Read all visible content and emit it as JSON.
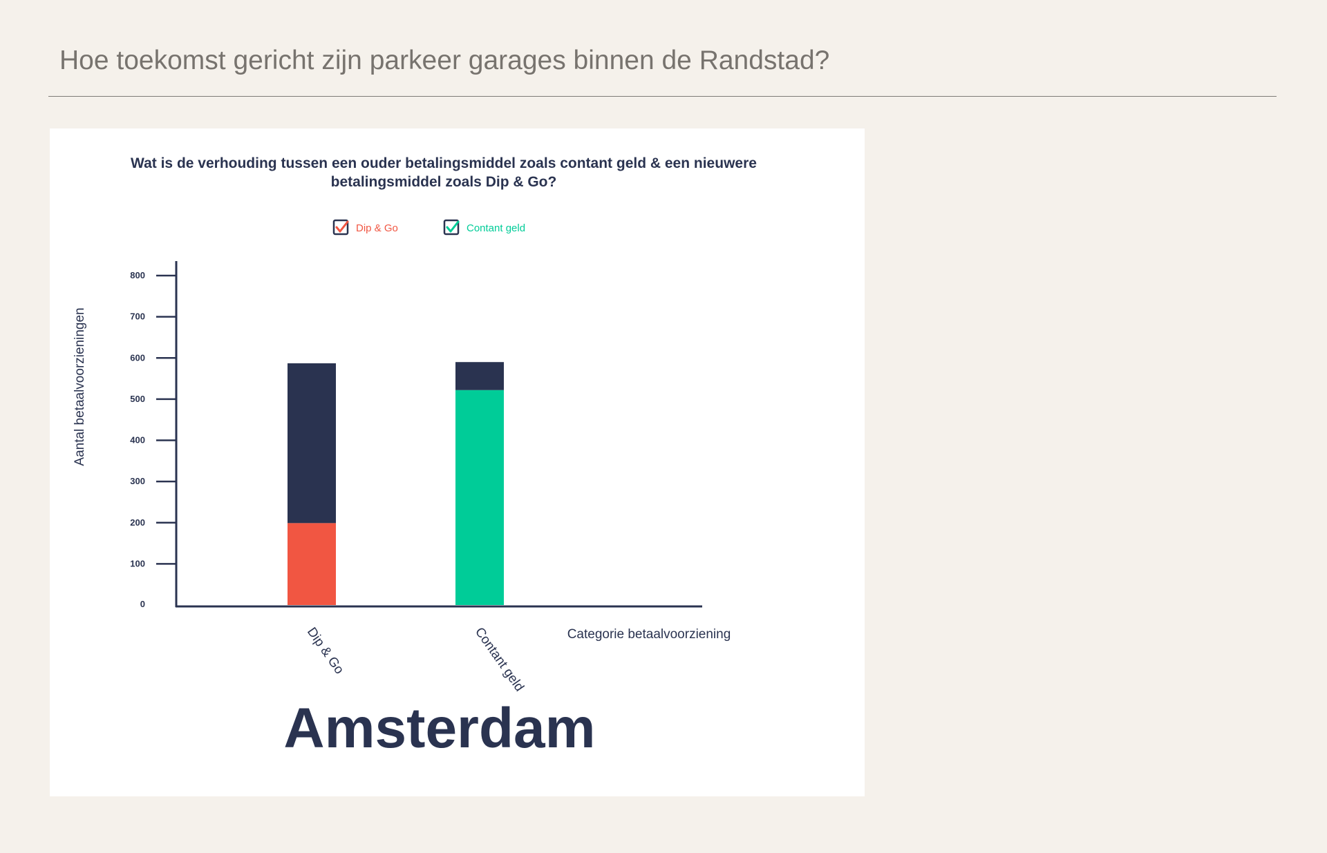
{
  "page": {
    "title": "Hoe toekomst gericht zijn parkeer garages binnen de Randstad?"
  },
  "colors": {
    "background": "#f5f1eb",
    "card": "#ffffff",
    "navy": "#2a3350",
    "dip_go": "#f15642",
    "contant": "#00cc98"
  },
  "chart_data": {
    "type": "bar",
    "stacked": true,
    "title_lines": [
      "Wat is de verhouding tussen een ouder betalingsmiddel zoals contant geld & een nieuwere",
      "betalingsmiddel zoals Dip & Go?"
    ],
    "categories": [
      "Dip & Go",
      "Contant geld"
    ],
    "series": [
      {
        "name": "Dip & Go",
        "color": "#f15642",
        "values": [
          199,
          0
        ]
      },
      {
        "name": "Contant geld",
        "color": "#00cc98",
        "values": [
          0,
          522
        ]
      },
      {
        "color": "#2a3350",
        "values": [
          388,
          68
        ]
      }
    ],
    "legend": [
      {
        "label": "Dip & Go",
        "color": "#f15642",
        "checked": true
      },
      {
        "label": "Contant geld",
        "color": "#00cc98",
        "checked": true
      }
    ],
    "legend_position": "top-center",
    "xlabel": "Categorie betaalvoorziening",
    "ylabel": "Aantal betaalvoorzieningen",
    "y_ticks": [
      0,
      100,
      200,
      300,
      400,
      500,
      600,
      700,
      800
    ],
    "ylim": [
      0,
      800
    ],
    "grid": false,
    "city": "Amsterdam"
  }
}
